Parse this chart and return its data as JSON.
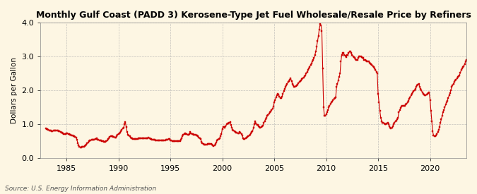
{
  "title": "Monthly Gulf Coast (PADD 3) Kerosene-Type Jet Fuel Wholesale/Resale Price by Refiners",
  "ylabel": "Dollars per Gallon",
  "source": "Source: U.S. Energy Information Administration",
  "background_color": "#fdf6e3",
  "line_color": "#cc0000",
  "marker": "s",
  "markersize": 2.0,
  "linewidth": 0.8,
  "xlim_left": 1982.5,
  "xlim_right": 2023.5,
  "ylim_bottom": 0.0,
  "ylim_top": 4.0,
  "xticks": [
    1985,
    1990,
    1995,
    2000,
    2005,
    2010,
    2015,
    2020
  ],
  "yticks": [
    0.0,
    1.0,
    2.0,
    3.0,
    4.0
  ],
  "prices": [
    0.88,
    0.87,
    0.86,
    0.85,
    0.83,
    0.82,
    0.81,
    0.8,
    0.8,
    0.81,
    0.82,
    0.83,
    0.83,
    0.82,
    0.81,
    0.8,
    0.79,
    0.78,
    0.76,
    0.75,
    0.73,
    0.72,
    0.71,
    0.71,
    0.74,
    0.73,
    0.72,
    0.71,
    0.7,
    0.69,
    0.68,
    0.67,
    0.66,
    0.65,
    0.63,
    0.62,
    0.55,
    0.45,
    0.38,
    0.35,
    0.33,
    0.33,
    0.34,
    0.35,
    0.35,
    0.36,
    0.38,
    0.4,
    0.45,
    0.47,
    0.5,
    0.52,
    0.53,
    0.54,
    0.55,
    0.55,
    0.56,
    0.57,
    0.58,
    0.59,
    0.55,
    0.54,
    0.53,
    0.52,
    0.52,
    0.51,
    0.5,
    0.49,
    0.49,
    0.49,
    0.5,
    0.53,
    0.57,
    0.6,
    0.63,
    0.65,
    0.65,
    0.65,
    0.64,
    0.63,
    0.62,
    0.62,
    0.65,
    0.7,
    0.72,
    0.74,
    0.76,
    0.8,
    0.85,
    0.88,
    0.9,
    1.0,
    1.07,
    0.92,
    0.78,
    0.7,
    0.68,
    0.65,
    0.62,
    0.6,
    0.59,
    0.58,
    0.58,
    0.57,
    0.57,
    0.57,
    0.58,
    0.59,
    0.6,
    0.6,
    0.6,
    0.6,
    0.6,
    0.6,
    0.6,
    0.6,
    0.6,
    0.6,
    0.6,
    0.62,
    0.59,
    0.58,
    0.57,
    0.56,
    0.55,
    0.54,
    0.54,
    0.53,
    0.53,
    0.52,
    0.52,
    0.52,
    0.52,
    0.52,
    0.52,
    0.52,
    0.53,
    0.53,
    0.53,
    0.54,
    0.55,
    0.56,
    0.57,
    0.57,
    0.53,
    0.52,
    0.51,
    0.5,
    0.5,
    0.5,
    0.5,
    0.5,
    0.5,
    0.5,
    0.51,
    0.51,
    0.56,
    0.6,
    0.65,
    0.7,
    0.72,
    0.73,
    0.72,
    0.71,
    0.7,
    0.7,
    0.72,
    0.77,
    0.73,
    0.72,
    0.71,
    0.7,
    0.7,
    0.69,
    0.68,
    0.67,
    0.65,
    0.62,
    0.6,
    0.57,
    0.48,
    0.44,
    0.42,
    0.4,
    0.4,
    0.4,
    0.41,
    0.42,
    0.43,
    0.43,
    0.43,
    0.42,
    0.4,
    0.38,
    0.37,
    0.38,
    0.42,
    0.47,
    0.52,
    0.56,
    0.58,
    0.6,
    0.65,
    0.72,
    0.87,
    0.92,
    0.92,
    0.91,
    0.95,
    1.0,
    1.02,
    1.03,
    1.05,
    1.06,
    0.98,
    0.9,
    0.85,
    0.82,
    0.8,
    0.78,
    0.76,
    0.75,
    0.74,
    0.73,
    0.78,
    0.75,
    0.72,
    0.68,
    0.6,
    0.58,
    0.58,
    0.6,
    0.62,
    0.63,
    0.65,
    0.67,
    0.7,
    0.73,
    0.77,
    0.8,
    0.9,
    1.0,
    1.1,
    1.02,
    0.98,
    0.98,
    0.95,
    0.92,
    0.91,
    0.92,
    0.94,
    0.97,
    1.05,
    1.1,
    1.15,
    1.2,
    1.25,
    1.28,
    1.32,
    1.35,
    1.38,
    1.42,
    1.46,
    1.52,
    1.65,
    1.72,
    1.8,
    1.85,
    1.9,
    1.87,
    1.82,
    1.78,
    1.78,
    1.82,
    1.9,
    1.98,
    2.05,
    2.1,
    2.15,
    2.2,
    2.25,
    2.28,
    2.32,
    2.35,
    2.28,
    2.2,
    2.15,
    2.1,
    2.1,
    2.12,
    2.15,
    2.18,
    2.22,
    2.25,
    2.28,
    2.3,
    2.33,
    2.35,
    2.38,
    2.42,
    2.45,
    2.5,
    2.55,
    2.6,
    2.65,
    2.7,
    2.75,
    2.8,
    2.85,
    2.9,
    2.95,
    3.05,
    3.15,
    3.3,
    3.45,
    3.6,
    3.8,
    3.95,
    3.92,
    3.75,
    2.65,
    1.5,
    1.25,
    1.25,
    1.3,
    1.35,
    1.42,
    1.5,
    1.55,
    1.6,
    1.65,
    1.68,
    1.72,
    1.75,
    1.78,
    1.8,
    2.1,
    2.2,
    2.3,
    2.4,
    2.5,
    2.85,
    3.05,
    3.1,
    3.1,
    3.05,
    3.02,
    2.98,
    3.05,
    3.05,
    3.1,
    3.15,
    3.15,
    3.1,
    3.05,
    3.0,
    2.98,
    2.95,
    2.92,
    2.9,
    2.9,
    2.95,
    3.0,
    3.0,
    3.0,
    2.98,
    2.95,
    2.95,
    2.9,
    2.9,
    2.88,
    2.85,
    2.85,
    2.85,
    2.82,
    2.8,
    2.78,
    2.75,
    2.72,
    2.7,
    2.65,
    2.6,
    2.55,
    2.5,
    1.9,
    1.65,
    1.4,
    1.2,
    1.1,
    1.05,
    1.05,
    1.02,
    1.0,
    1.0,
    1.02,
    1.05,
    1.0,
    0.95,
    0.9,
    0.88,
    0.9,
    0.95,
    1.0,
    1.05,
    1.1,
    1.12,
    1.15,
    1.2,
    1.35,
    1.42,
    1.48,
    1.52,
    1.55,
    1.55,
    1.55,
    1.55,
    1.58,
    1.6,
    1.65,
    1.7,
    1.75,
    1.8,
    1.85,
    1.9,
    1.95,
    1.98,
    2.0,
    2.05,
    2.1,
    2.15,
    2.18,
    2.2,
    2.1,
    2.05,
    2.0,
    1.95,
    1.9,
    1.88,
    1.85,
    1.85,
    1.88,
    1.9,
    1.92,
    1.95,
    1.72,
    1.4,
    1.1,
    0.8,
    0.68,
    0.65,
    0.65,
    0.68,
    0.72,
    0.78,
    0.85,
    0.92,
    1.05,
    1.15,
    1.25,
    1.35,
    1.42,
    1.5,
    1.58,
    1.65,
    1.7,
    1.78,
    1.85,
    1.92,
    2.0,
    2.1,
    2.15,
    2.2,
    2.25,
    2.3,
    2.32,
    2.35,
    2.4,
    2.42,
    2.45,
    2.52,
    2.6,
    2.65,
    2.68,
    2.72,
    2.78,
    2.85,
    2.9,
    2.9,
    2.88,
    3.25
  ],
  "start_year": 1983,
  "start_month": 1
}
